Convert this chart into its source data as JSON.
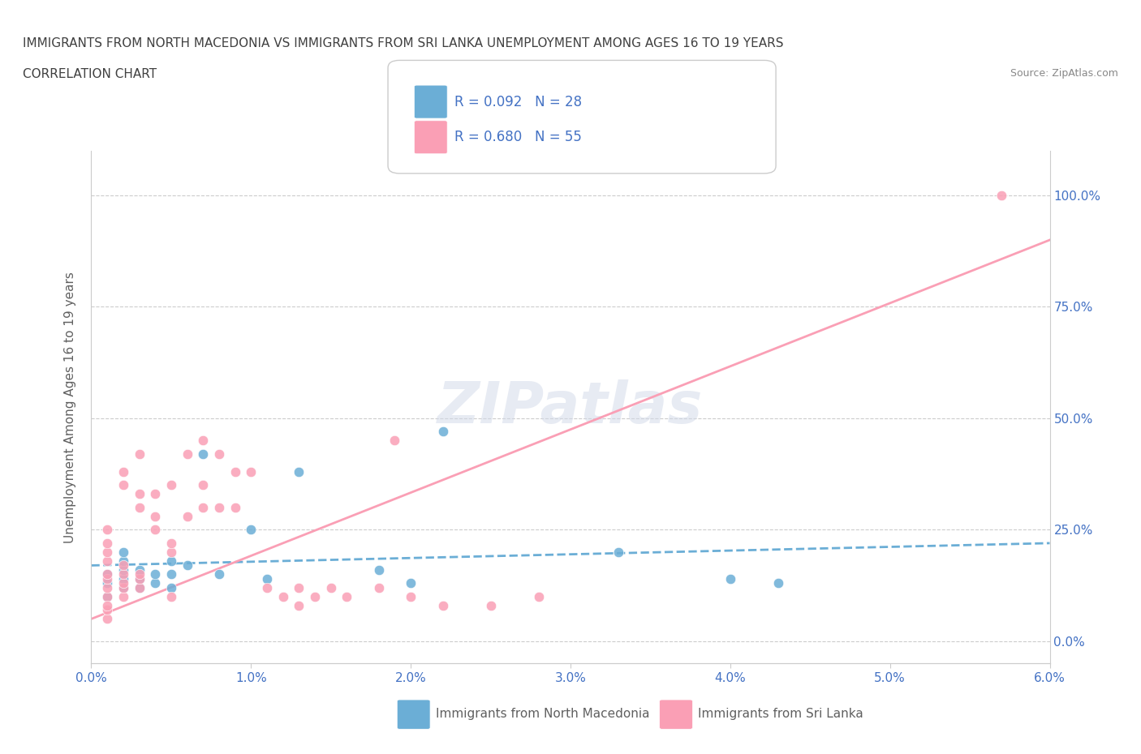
{
  "title_line1": "IMMIGRANTS FROM NORTH MACEDONIA VS IMMIGRANTS FROM SRI LANKA UNEMPLOYMENT AMONG AGES 16 TO 19 YEARS",
  "title_line2": "CORRELATION CHART",
  "source_text": "Source: ZipAtlas.com",
  "xlabel": "",
  "ylabel": "Unemployment Among Ages 16 to 19 years",
  "xlim": [
    0.0,
    0.06
  ],
  "ylim": [
    -0.05,
    1.1
  ],
  "xtick_labels": [
    "0.0%",
    "1.0%",
    "2.0%",
    "3.0%",
    "4.0%",
    "5.0%",
    "6.0%"
  ],
  "xtick_vals": [
    0.0,
    0.01,
    0.02,
    0.03,
    0.04,
    0.05,
    0.06
  ],
  "ytick_labels": [
    "0.0%",
    "25.0%",
    "50.0%",
    "75.0%",
    "100.0%"
  ],
  "ytick_vals": [
    0.0,
    0.25,
    0.5,
    0.75,
    1.0
  ],
  "color_blue": "#6baed6",
  "color_pink": "#fa9fb5",
  "legend_blue_text": "R = 0.092   N = 28",
  "legend_pink_text": "R = 0.680   N = 55",
  "legend_bottom_blue": "Immigrants from North Macedonia",
  "legend_bottom_pink": "Immigrants from Sri Lanka",
  "watermark": "ZIPatlas",
  "blue_scatter_x": [
    0.001,
    0.001,
    0.001,
    0.002,
    0.002,
    0.002,
    0.002,
    0.002,
    0.003,
    0.003,
    0.003,
    0.004,
    0.004,
    0.005,
    0.005,
    0.005,
    0.006,
    0.007,
    0.008,
    0.01,
    0.011,
    0.013,
    0.018,
    0.02,
    0.022,
    0.033,
    0.04,
    0.043
  ],
  "blue_scatter_y": [
    0.1,
    0.13,
    0.15,
    0.12,
    0.14,
    0.16,
    0.18,
    0.2,
    0.12,
    0.14,
    0.16,
    0.13,
    0.15,
    0.12,
    0.15,
    0.18,
    0.17,
    0.42,
    0.15,
    0.25,
    0.14,
    0.38,
    0.16,
    0.13,
    0.47,
    0.2,
    0.14,
    0.13
  ],
  "pink_scatter_x": [
    0.001,
    0.001,
    0.001,
    0.001,
    0.001,
    0.001,
    0.001,
    0.001,
    0.001,
    0.001,
    0.001,
    0.002,
    0.002,
    0.002,
    0.002,
    0.002,
    0.002,
    0.002,
    0.003,
    0.003,
    0.003,
    0.003,
    0.003,
    0.003,
    0.004,
    0.004,
    0.004,
    0.005,
    0.005,
    0.005,
    0.005,
    0.006,
    0.006,
    0.007,
    0.007,
    0.007,
    0.008,
    0.008,
    0.009,
    0.009,
    0.01,
    0.011,
    0.012,
    0.013,
    0.013,
    0.014,
    0.015,
    0.016,
    0.018,
    0.019,
    0.02,
    0.022,
    0.025,
    0.028,
    0.057
  ],
  "pink_scatter_y": [
    0.1,
    0.12,
    0.14,
    0.15,
    0.05,
    0.07,
    0.18,
    0.2,
    0.08,
    0.22,
    0.25,
    0.1,
    0.12,
    0.13,
    0.15,
    0.17,
    0.35,
    0.38,
    0.12,
    0.14,
    0.15,
    0.3,
    0.33,
    0.42,
    0.25,
    0.28,
    0.33,
    0.1,
    0.2,
    0.22,
    0.35,
    0.28,
    0.42,
    0.3,
    0.35,
    0.45,
    0.3,
    0.42,
    0.3,
    0.38,
    0.38,
    0.12,
    0.1,
    0.08,
    0.12,
    0.1,
    0.12,
    0.1,
    0.12,
    0.45,
    0.1,
    0.08,
    0.08,
    0.1,
    1.0
  ],
  "blue_trend_x": [
    0.0,
    0.06
  ],
  "blue_trend_y": [
    0.17,
    0.22
  ],
  "pink_trend_x": [
    0.0,
    0.06
  ],
  "pink_trend_y": [
    0.05,
    0.9
  ],
  "background_color": "#ffffff",
  "grid_color": "#cccccc",
  "title_color": "#404040",
  "axis_label_color": "#606060",
  "tick_color_blue": "#4472c4",
  "r_label_color": "#4472c4",
  "n_label_color": "#4472c4"
}
